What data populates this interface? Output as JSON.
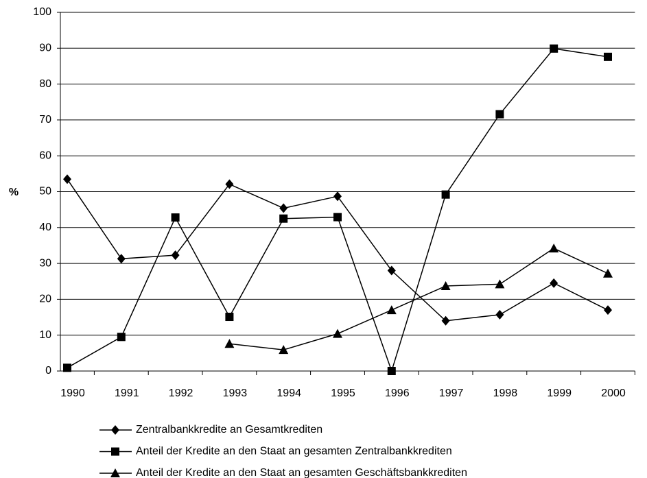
{
  "chart_data": {
    "type": "line",
    "y_label": "%",
    "categories": [
      "1990",
      "1991",
      "1992",
      "1993",
      "1994",
      "1995",
      "1996",
      "1997",
      "1998",
      "1999",
      "2000"
    ],
    "series": [
      {
        "name": "Zentralbankkredite an Gesamtkrediten",
        "color": "#000000",
        "marker": "diamond",
        "values": [
          53.5,
          31.3,
          32.3,
          52.1,
          45.4,
          48.7,
          28.0,
          14.0,
          15.7,
          24.5,
          17.0
        ]
      },
      {
        "name": "Anteil der Kredite an den Staat an gesamten Zentralbankkrediten",
        "color": "#000000",
        "marker": "square",
        "values": [
          0.9,
          9.5,
          42.8,
          15.1,
          42.5,
          42.9,
          0,
          49.2,
          71.6,
          89.9,
          87.6
        ]
      },
      {
        "name": "Anteil der Kredite an den Staat an gesamten Geschäftsbankkrediten",
        "color": "#000000",
        "marker": "triangle",
        "values": [
          null,
          null,
          null,
          7.6,
          5.9,
          10.4,
          17.0,
          23.7,
          24.2,
          34.2,
          27.2
        ]
      }
    ],
    "ylim": [
      0,
      100
    ],
    "yticks": [
      0,
      10,
      20,
      30,
      40,
      50,
      60,
      70,
      80,
      90,
      100
    ],
    "grid": true
  }
}
